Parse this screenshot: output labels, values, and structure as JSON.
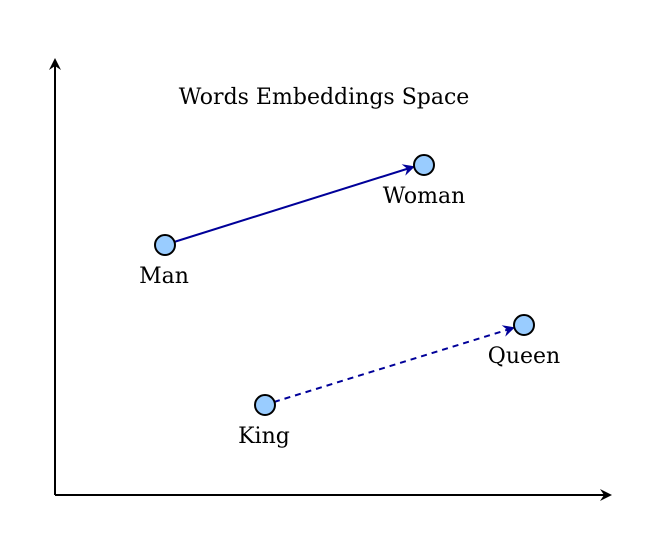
{
  "diagram": {
    "title": "Words Embeddings Space",
    "colors": {
      "axis": "#000000",
      "point_fill": "#99ccff",
      "point_stroke": "#000000",
      "arrow": "#000099"
    },
    "points": {
      "man": "Man",
      "woman": "Woman",
      "king": "King",
      "queen": "Queen"
    },
    "relations": [
      {
        "from": "Man",
        "to": "Woman",
        "style": "solid"
      },
      {
        "from": "King",
        "to": "Queen",
        "style": "dashed"
      }
    ]
  }
}
